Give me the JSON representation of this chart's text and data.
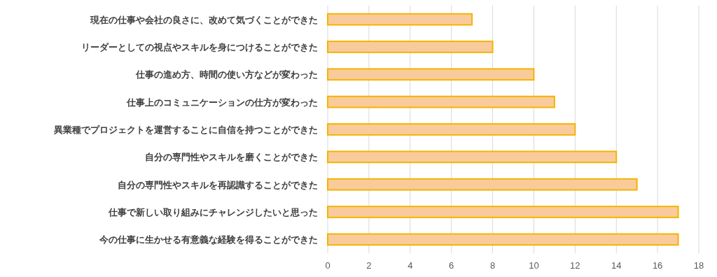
{
  "chart_data": {
    "type": "bar",
    "orientation": "horizontal",
    "categories": [
      "現在の仕事や会社の良さに、改めて気づくことができた",
      "リーダーとしての視点やスキルを身につけることができた",
      "仕事の進め方、時間の使い方などが変わった",
      "仕事上のコミュニケーションの仕方が変わった",
      "異業種でプロジェクトを運営することに自信を持つことができた",
      "自分の専門性やスキルを磨くことができた",
      "自分の専門性やスキルを再認識することができた",
      "仕事で新しい取り組みにチャレンジしたいと思った",
      "今の仕事に生かせる有意義な経験を得ることができた"
    ],
    "values": [
      7,
      8,
      10,
      11,
      12,
      14,
      15,
      17,
      17
    ],
    "color": "#f9cb9c",
    "xlim": [
      0,
      18
    ],
    "xticks": [
      0,
      2,
      4,
      6,
      8,
      10,
      12,
      14,
      16,
      18
    ],
    "grid": "x"
  }
}
